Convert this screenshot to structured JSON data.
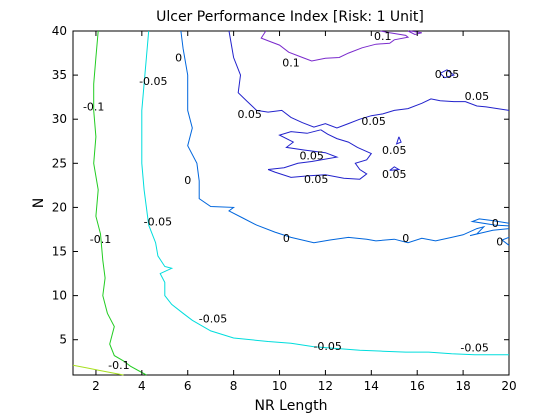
{
  "chart_data": {
    "type": "contour",
    "title": "Ulcer Performance Index [Risk: 1 Unit]",
    "xlabel": "NR Length",
    "ylabel": "N",
    "xlim": [
      1,
      20
    ],
    "ylim": [
      1,
      40
    ],
    "xticks": [
      2,
      4,
      6,
      8,
      10,
      12,
      14,
      16,
      18,
      20
    ],
    "yticks": [
      5,
      10,
      15,
      20,
      25,
      30,
      35,
      40
    ],
    "grid": false,
    "legend": "none",
    "contours": [
      {
        "level": "-0.1",
        "color": "#22cc22",
        "points": [
          [
            2.1,
            40
          ],
          [
            2.0,
            37
          ],
          [
            1.9,
            34
          ],
          [
            1.9,
            31
          ],
          [
            2.0,
            28
          ],
          [
            1.9,
            25
          ],
          [
            2.1,
            22
          ],
          [
            2.0,
            19
          ],
          [
            2.2,
            17
          ],
          [
            2.3,
            14
          ],
          [
            2.4,
            12
          ],
          [
            2.3,
            10
          ],
          [
            2.5,
            8
          ],
          [
            2.8,
            6.5
          ],
          [
            2.6,
            4.5
          ],
          [
            2.8,
            3.2
          ],
          [
            3.2,
            2.6
          ],
          [
            3.5,
            2.0
          ],
          [
            4.2,
            1.0
          ]
        ]
      },
      {
        "level": "-0.1",
        "color": "#a8e020",
        "points": [
          [
            1.0,
            2.1
          ],
          [
            1.6,
            1.8
          ],
          [
            2.2,
            1.5
          ],
          [
            2.8,
            1.2
          ],
          [
            3.2,
            1.0
          ]
        ]
      },
      {
        "level": "-0.05",
        "color": "#00dddd",
        "points": [
          [
            4.3,
            40
          ],
          [
            4.2,
            37
          ],
          [
            4.1,
            34
          ],
          [
            4.0,
            31
          ],
          [
            4.0,
            28
          ],
          [
            4.0,
            25
          ],
          [
            4.1,
            22
          ],
          [
            4.2,
            20
          ],
          [
            4.3,
            18
          ],
          [
            4.6,
            16
          ],
          [
            4.7,
            14.5
          ],
          [
            5.0,
            13.3
          ],
          [
            5.3,
            13.1
          ],
          [
            4.8,
            12.5
          ],
          [
            5.0,
            11.5
          ],
          [
            5.0,
            10
          ],
          [
            5.3,
            9
          ],
          [
            5.8,
            8
          ],
          [
            6.2,
            7.2
          ],
          [
            7.0,
            6.0
          ],
          [
            8.0,
            5.2
          ],
          [
            9.5,
            4.8
          ],
          [
            10.5,
            4.6
          ],
          [
            11.5,
            4.2
          ],
          [
            12.5,
            4.0
          ],
          [
            13.5,
            3.8
          ],
          [
            14.5,
            3.7
          ],
          [
            15.5,
            3.6
          ],
          [
            16.5,
            3.6
          ],
          [
            17.5,
            3.4
          ],
          [
            18.5,
            3.3
          ],
          [
            19.2,
            3.3
          ],
          [
            20,
            3.3
          ]
        ]
      },
      {
        "level": "0",
        "color": "#0066dd",
        "points": [
          [
            5.7,
            40
          ],
          [
            5.8,
            38
          ],
          [
            6.0,
            35
          ],
          [
            6.0,
            33
          ],
          [
            6.0,
            31
          ],
          [
            6.2,
            29
          ],
          [
            6.0,
            27
          ],
          [
            6.4,
            25
          ],
          [
            6.5,
            23
          ],
          [
            6.5,
            21
          ],
          [
            7.0,
            20.1
          ],
          [
            8.0,
            20.0
          ],
          [
            7.8,
            19.6
          ],
          [
            8.4,
            18.8
          ],
          [
            9.0,
            18.0
          ],
          [
            9.8,
            17.2
          ],
          [
            10.5,
            16.6
          ],
          [
            11.5,
            16.0
          ],
          [
            12.2,
            16.3
          ],
          [
            13.0,
            16.6
          ],
          [
            13.8,
            16.4
          ],
          [
            14.2,
            16.2
          ],
          [
            15.0,
            16.4
          ],
          [
            15.6,
            16.0
          ],
          [
            16.2,
            16.5
          ],
          [
            16.8,
            16.2
          ],
          [
            17.5,
            16.6
          ],
          [
            18.0,
            16.9
          ],
          [
            18.6,
            17.6
          ],
          [
            18.9,
            17.8
          ],
          [
            18.6,
            17.0
          ],
          [
            18.3,
            16.8
          ],
          [
            19.3,
            17.4
          ],
          [
            20,
            17.6
          ]
        ]
      },
      {
        "level": "0",
        "color": "#0066dd",
        "points": [
          [
            20,
            18.2
          ],
          [
            19.3,
            18.5
          ],
          [
            18.7,
            18.7
          ],
          [
            18.4,
            18.4
          ],
          [
            19.4,
            18.0
          ],
          [
            20,
            17.9
          ]
        ]
      },
      {
        "level": "0",
        "color": "#0066dd",
        "points": [
          [
            20,
            16.6
          ],
          [
            19.7,
            16.3
          ],
          [
            20,
            15.7
          ]
        ]
      },
      {
        "level": "0.05",
        "color": "#2222cc",
        "points": [
          [
            7.8,
            40
          ],
          [
            8.0,
            37
          ],
          [
            8.3,
            35
          ],
          [
            8.2,
            33
          ],
          [
            8.6,
            32
          ],
          [
            9.0,
            31.0
          ],
          [
            9.5,
            30.8
          ],
          [
            10.1,
            31.0
          ],
          [
            10.5,
            30.2
          ],
          [
            11.0,
            29.6
          ],
          [
            11.5,
            29.1
          ],
          [
            12.0,
            29.5
          ],
          [
            12.5,
            29.0
          ],
          [
            13.0,
            29.5
          ],
          [
            13.5,
            30.0
          ],
          [
            14.0,
            30.4
          ],
          [
            14.5,
            30.6
          ],
          [
            15.0,
            31.0
          ],
          [
            15.6,
            31.2
          ],
          [
            16.2,
            31.8
          ],
          [
            16.6,
            32.3
          ],
          [
            17.0,
            32.1
          ],
          [
            17.6,
            32.0
          ],
          [
            18.1,
            32.0
          ],
          [
            18.6,
            31.5
          ],
          [
            19.0,
            31.4
          ],
          [
            19.5,
            31.2
          ],
          [
            20,
            31.0
          ]
        ]
      },
      {
        "level": "0.05",
        "color": "#2222cc",
        "points": [
          [
            11.8,
            28.8
          ],
          [
            11.2,
            28.4
          ],
          [
            10.5,
            28.6
          ],
          [
            10.0,
            28.2
          ],
          [
            10.6,
            27.4
          ],
          [
            10.3,
            26.8
          ],
          [
            11.1,
            26.5
          ],
          [
            12.0,
            26.2
          ],
          [
            12.5,
            25.7
          ],
          [
            11.4,
            25.2
          ],
          [
            10.8,
            25.0
          ],
          [
            10.2,
            24.5
          ],
          [
            9.5,
            24.3
          ],
          [
            9.8,
            24.0
          ],
          [
            10.5,
            23.4
          ],
          [
            11.3,
            23.6
          ],
          [
            12.0,
            23.7
          ],
          [
            12.8,
            23.3
          ],
          [
            13.5,
            23.2
          ],
          [
            13.8,
            23.8
          ],
          [
            13.5,
            24.3
          ],
          [
            13.3,
            25.0
          ],
          [
            13.8,
            25.4
          ],
          [
            14.0,
            26.1
          ],
          [
            13.4,
            26.8
          ],
          [
            13.0,
            27.4
          ],
          [
            12.5,
            27.8
          ],
          [
            12.1,
            28.3
          ],
          [
            11.8,
            28.8
          ]
        ]
      },
      {
        "level": "0.05",
        "color": "#2222cc",
        "points": [
          [
            17.0,
            35.2
          ],
          [
            17.3,
            35.6
          ],
          [
            17.6,
            35.0
          ],
          [
            17.2,
            34.7
          ],
          [
            17.0,
            35.2
          ]
        ]
      },
      {
        "level": "0.05",
        "color": "#2222cc",
        "points": [
          [
            15.2,
            28.0
          ],
          [
            15.3,
            27.4
          ],
          [
            15.1,
            27.2
          ],
          [
            15.2,
            28.0
          ]
        ]
      },
      {
        "level": "0.05",
        "color": "#2222cc",
        "points": [
          [
            14.8,
            24.2
          ],
          [
            15.0,
            24.6
          ],
          [
            15.2,
            24.3
          ],
          [
            14.8,
            24.2
          ]
        ]
      },
      {
        "level": "0.1",
        "color": "#7a2acc",
        "points": [
          [
            9.4,
            40
          ],
          [
            9.2,
            39.2
          ],
          [
            9.6,
            38.8
          ],
          [
            10.0,
            38.4
          ],
          [
            10.4,
            37.6
          ],
          [
            11.0,
            37.0
          ],
          [
            11.4,
            36.6
          ],
          [
            12.0,
            36.9
          ],
          [
            12.6,
            37.0
          ],
          [
            13.0,
            37.5
          ],
          [
            13.6,
            38.1
          ],
          [
            14.2,
            38.5
          ],
          [
            14.8,
            38.6
          ],
          [
            15.0,
            39.0
          ],
          [
            15.6,
            39.3
          ],
          [
            15.5,
            39.5
          ],
          [
            14.8,
            39.8
          ],
          [
            14.4,
            40
          ]
        ]
      },
      {
        "level": "0.1",
        "color": "#7a2acc",
        "points": [
          [
            15.6,
            40
          ],
          [
            15.9,
            39.6
          ],
          [
            16.2,
            39.8
          ],
          [
            15.7,
            40
          ]
        ]
      }
    ],
    "annotations": [
      {
        "text": "0.1",
        "x": 14.5,
        "y": 39.3
      },
      {
        "text": "0.1",
        "x": 10.5,
        "y": 36.3
      },
      {
        "text": "0",
        "x": 5.6,
        "y": 36.9
      },
      {
        "text": "0.05",
        "x": 17.3,
        "y": 35.0
      },
      {
        "text": "-0.05",
        "x": 4.5,
        "y": 34.2
      },
      {
        "text": "0.05",
        "x": 18.6,
        "y": 32.5
      },
      {
        "text": "-0.1",
        "x": 1.9,
        "y": 31.3
      },
      {
        "text": "0.05",
        "x": 8.7,
        "y": 30.5
      },
      {
        "text": "0.05",
        "x": 14.1,
        "y": 29.7
      },
      {
        "text": "0.05",
        "x": 15.0,
        "y": 26.4
      },
      {
        "text": "0.05",
        "x": 11.4,
        "y": 25.8
      },
      {
        "text": "0.05",
        "x": 15.0,
        "y": 23.7
      },
      {
        "text": "0.05",
        "x": 11.6,
        "y": 23.1
      },
      {
        "text": "0",
        "x": 6.0,
        "y": 23.0
      },
      {
        "text": "-0.05",
        "x": 4.7,
        "y": 18.3
      },
      {
        "text": "0",
        "x": 19.4,
        "y": 18.1
      },
      {
        "text": "-0.1",
        "x": 2.2,
        "y": 16.3
      },
      {
        "text": "0",
        "x": 10.3,
        "y": 16.4
      },
      {
        "text": "0",
        "x": 15.5,
        "y": 16.4
      },
      {
        "text": "0",
        "x": 19.6,
        "y": 16.0
      },
      {
        "text": "-0.05",
        "x": 7.1,
        "y": 7.3
      },
      {
        "text": "-0.05",
        "x": 12.1,
        "y": 4.2
      },
      {
        "text": "-0.05",
        "x": 18.5,
        "y": 4.0
      },
      {
        "text": "-0.1",
        "x": 3.0,
        "y": 2.0
      }
    ]
  }
}
